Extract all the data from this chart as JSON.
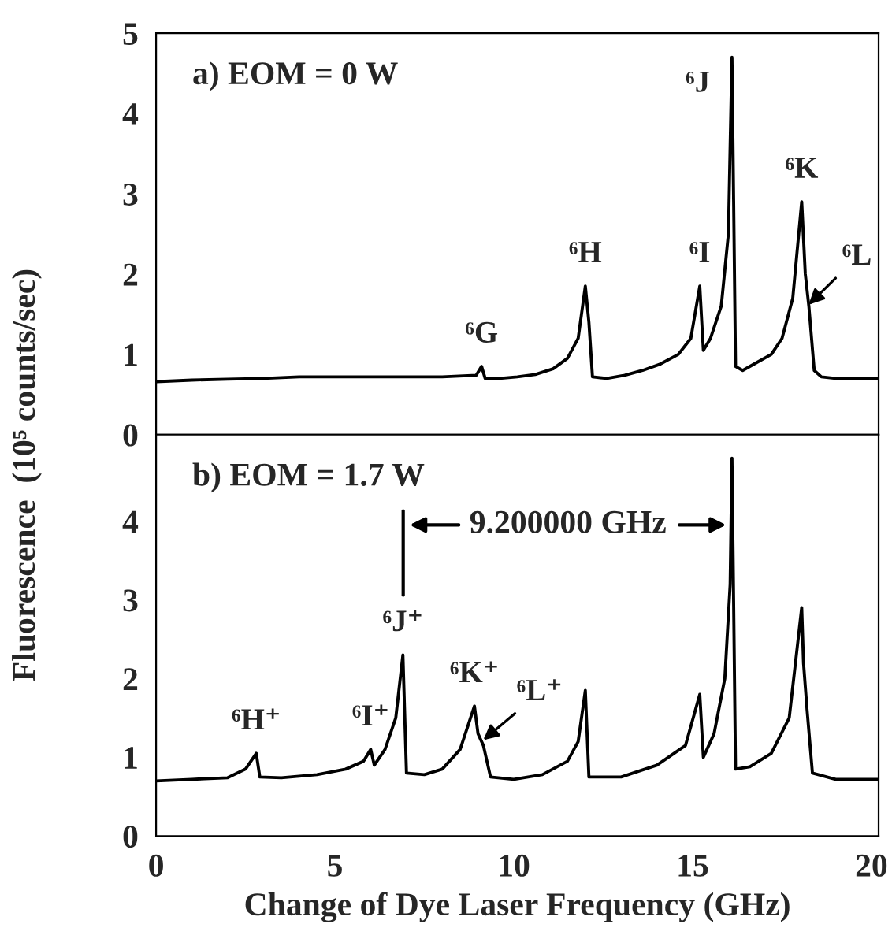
{
  "chart_data": [
    {
      "type": "line",
      "ylabel": "Fluorescence  (10⁵ counts/sec)",
      "xlim": [
        0,
        20.2
      ],
      "ylim": [
        0,
        5
      ],
      "yticks": [
        0,
        1,
        2,
        3,
        4,
        5
      ],
      "tick_labels": "y",
      "grid": false,
      "legend": false,
      "marker": "none",
      "line_style": "solid",
      "annotations": [
        "a) EOM = 0 W",
        {
          "text": "⁶G",
          "x": 9.1,
          "y": 0.85
        },
        {
          "text": "⁶H",
          "x": 12.0,
          "y": 1.85
        },
        {
          "text": "⁶I",
          "x": 15.2,
          "y": 1.85
        },
        {
          "text": "⁶J",
          "x": 16.1,
          "y": 4.7
        },
        {
          "text": "⁶K",
          "x": 18.05,
          "y": 2.9
        },
        {
          "text": "⁶L",
          "x": 18.2,
          "y": 1.6
        }
      ],
      "series": [
        {
          "color": "#000000",
          "x": [
            0,
            1,
            2,
            3,
            4,
            5,
            6,
            7,
            8,
            8.95,
            9.1,
            9.2,
            9.6,
            10.1,
            10.6,
            11.1,
            11.5,
            11.8,
            12.0,
            12.1,
            12.2,
            12.6,
            13.1,
            13.6,
            14.1,
            14.6,
            14.95,
            15.2,
            15.3,
            15.5,
            15.8,
            16.0,
            16.1,
            16.2,
            16.4,
            16.8,
            17.2,
            17.5,
            17.8,
            18.05,
            18.15,
            18.25,
            18.4,
            18.6,
            19,
            19.5,
            20,
            20.2
          ],
          "values": [
            0.66,
            0.68,
            0.69,
            0.7,
            0.72,
            0.72,
            0.72,
            0.72,
            0.72,
            0.74,
            0.85,
            0.7,
            0.7,
            0.72,
            0.75,
            0.82,
            0.95,
            1.2,
            1.85,
            1.4,
            0.72,
            0.7,
            0.74,
            0.8,
            0.88,
            1.0,
            1.2,
            1.85,
            1.05,
            1.2,
            1.6,
            2.5,
            4.7,
            0.85,
            0.8,
            0.9,
            1.0,
            1.2,
            1.7,
            2.9,
            2.0,
            1.6,
            0.8,
            0.72,
            0.7,
            0.7,
            0.7,
            0.7
          ]
        }
      ]
    },
    {
      "type": "line",
      "xlabel": "Change of Dye Laser Frequency (GHz)",
      "xlim": [
        0,
        20.2
      ],
      "xticks": [
        0,
        5,
        10,
        15,
        20
      ],
      "ylim": [
        0,
        5.1
      ],
      "yticks": [
        0,
        1,
        2,
        3,
        4
      ],
      "grid": false,
      "legend": false,
      "marker": "none",
      "line_style": "solid",
      "annotations": [
        "b) EOM = 1.7 W",
        "9.200000 GHz",
        {
          "text": "⁶H⁺",
          "x": 2.8,
          "y": 1.05
        },
        {
          "text": "⁶I⁺",
          "x": 6.0,
          "y": 1.1
        },
        {
          "text": "⁶J⁺",
          "x": 6.9,
          "y": 2.3
        },
        {
          "text": "⁶K⁺",
          "x": 8.9,
          "y": 1.65
        },
        {
          "text": "⁶L⁺",
          "x": 9.1,
          "y": 1.2
        }
      ],
      "series": [
        {
          "color": "#000000",
          "x": [
            0,
            1,
            2,
            2.5,
            2.8,
            2.9,
            3.5,
            4.5,
            5.3,
            5.8,
            6.0,
            6.1,
            6.4,
            6.7,
            6.9,
            7.0,
            7.5,
            8.0,
            8.5,
            8.9,
            9.0,
            9.15,
            9.35,
            10,
            10.8,
            11.5,
            11.8,
            12.0,
            12.1,
            13,
            14,
            14.8,
            15.2,
            15.3,
            15.6,
            15.9,
            16.05,
            16.1,
            16.2,
            16.6,
            17.2,
            17.7,
            18.05,
            18.1,
            18.2,
            18.35,
            19,
            20.2
          ],
          "values": [
            0.7,
            0.72,
            0.74,
            0.85,
            1.05,
            0.75,
            0.74,
            0.78,
            0.85,
            0.95,
            1.1,
            0.9,
            1.1,
            1.5,
            2.3,
            0.8,
            0.78,
            0.85,
            1.1,
            1.65,
            1.3,
            1.15,
            0.75,
            0.72,
            0.78,
            0.95,
            1.2,
            1.85,
            0.75,
            0.75,
            0.9,
            1.15,
            1.8,
            1.0,
            1.3,
            2.0,
            3.2,
            4.8,
            0.85,
            0.88,
            1.05,
            1.5,
            2.9,
            2.2,
            1.6,
            0.8,
            0.72,
            0.72
          ]
        }
      ]
    }
  ]
}
